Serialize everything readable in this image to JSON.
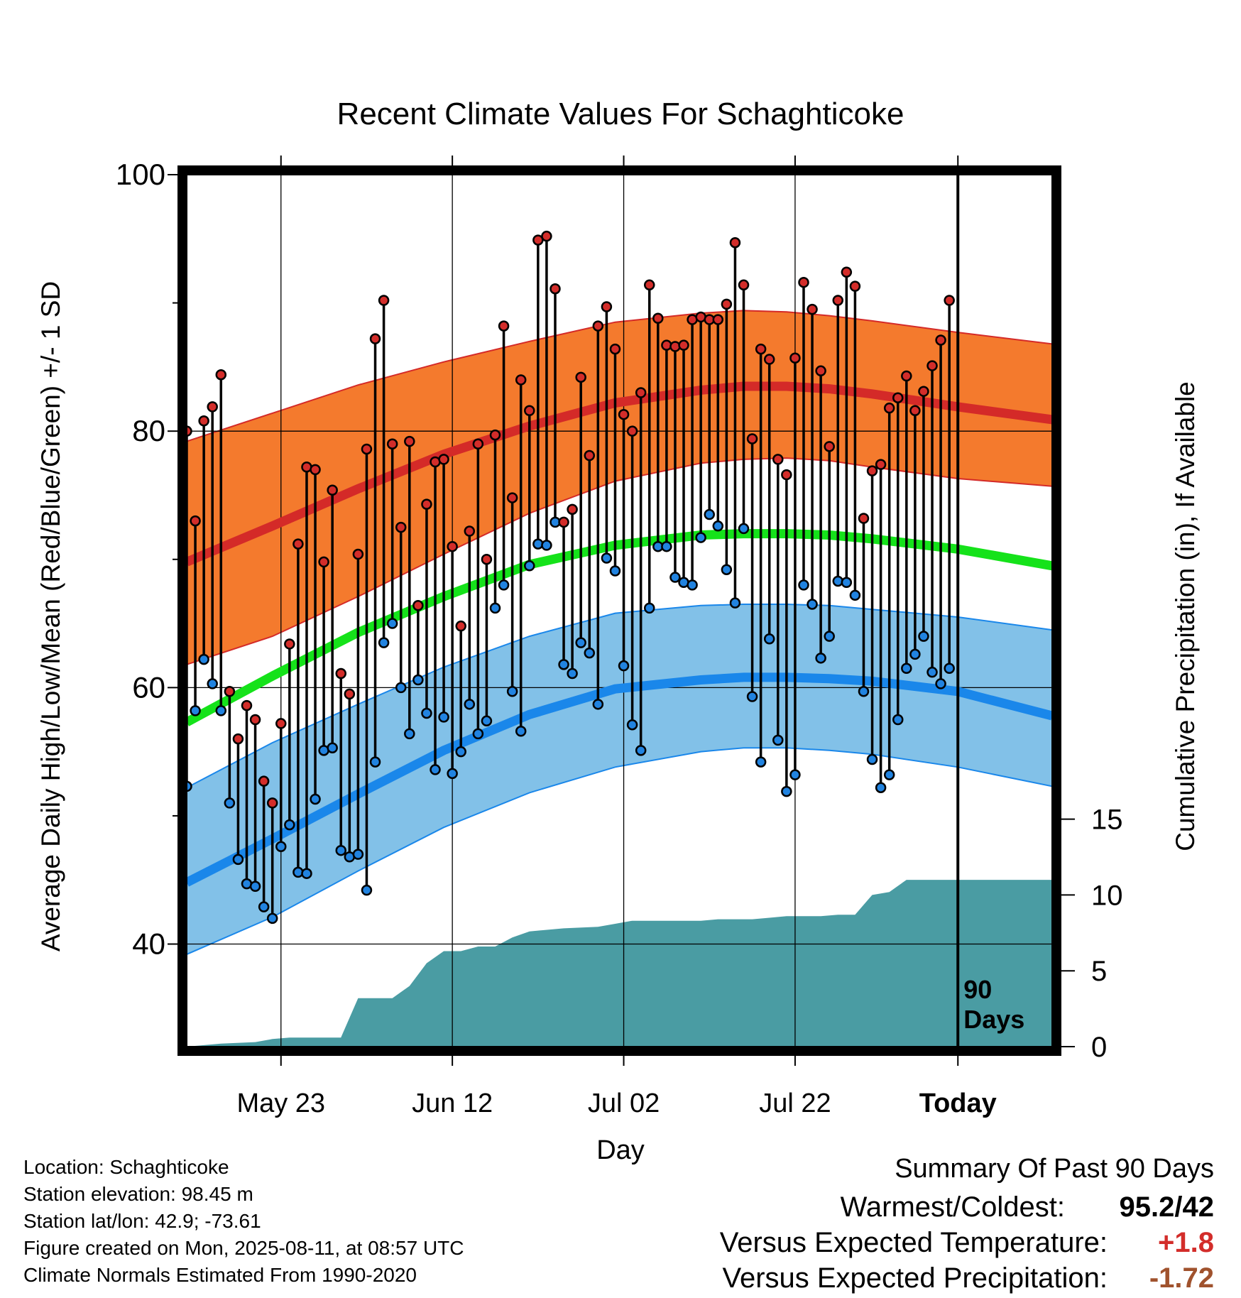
{
  "chart_data": {
    "type": "line",
    "title": "Recent Climate Values For Schaghticoke",
    "xlabel": "Day",
    "ylabel": "Average Daily High/Low/Mean (Red/Blue/Green) +/- 1 SD",
    "y2label": "Cumulative Precipitation (in), If Available",
    "ylim": [
      32,
      100
    ],
    "y2lim": [
      0,
      57.5
    ],
    "yticks": [
      "100",
      "80",
      "60",
      "40"
    ],
    "y2ticks": [
      "15",
      "10",
      "5",
      "0"
    ],
    "xlim": [
      0,
      101
    ],
    "xtick_positions": [
      11,
      31,
      51,
      71,
      90
    ],
    "xticks": [
      "May 23",
      "Jun 12",
      "Jul 02",
      "Jul 22",
      "Today"
    ],
    "today_label": "90\nDays",
    "grid": true,
    "colors": {
      "high_band": "#f47a2d",
      "high_line": "#d42a28",
      "mean_line": "#15e21a",
      "low_band": "#82c1e8",
      "low_line": "#1a87ea",
      "precip": "#4a9ca3",
      "high_marker": "#d32d2a",
      "low_marker": "#2183e0"
    },
    "normal_high": {
      "x": [
        0,
        10,
        20,
        30,
        40,
        50,
        60,
        65,
        70,
        75,
        80,
        90,
        101
      ],
      "mean": [
        69.8,
        72.6,
        75.5,
        78.2,
        80.4,
        82.2,
        83.2,
        83.5,
        83.5,
        83.3,
        82.9,
        81.9,
        80.9
      ],
      "upper": [
        79.2,
        81.4,
        83.6,
        85.4,
        87.0,
        88.5,
        89.2,
        89.4,
        89.3,
        89.0,
        88.6,
        87.7,
        86.8
      ],
      "lower": [
        61.8,
        64.0,
        67.1,
        70.4,
        73.6,
        76.1,
        77.5,
        77.8,
        77.9,
        77.7,
        77.2,
        76.3,
        75.7
      ]
    },
    "normal_mean": {
      "x": [
        0,
        10,
        20,
        30,
        40,
        50,
        60,
        65,
        70,
        75,
        80,
        90,
        101
      ],
      "values": [
        57.3,
        60.9,
        64.3,
        67.1,
        69.6,
        71.1,
        71.9,
        72.0,
        72.0,
        71.9,
        71.6,
        70.8,
        69.5
      ]
    },
    "normal_low": {
      "x": [
        0,
        10,
        20,
        30,
        40,
        50,
        60,
        65,
        70,
        75,
        80,
        90,
        101
      ],
      "mean": [
        44.8,
        48.2,
        51.7,
        55.1,
        57.9,
        59.9,
        60.6,
        60.8,
        60.8,
        60.7,
        60.5,
        59.7,
        57.8
      ],
      "upper": [
        52.2,
        55.7,
        58.7,
        61.6,
        64.0,
        65.8,
        66.4,
        66.5,
        66.5,
        66.4,
        66.1,
        65.5,
        64.5
      ],
      "lower": [
        39.2,
        42.1,
        45.7,
        49.1,
        51.8,
        53.8,
        55.0,
        55.3,
        55.3,
        55.1,
        54.8,
        53.8,
        52.3
      ]
    },
    "precip": {
      "x": [
        0,
        4,
        8,
        10,
        12,
        14,
        16,
        18,
        20,
        22,
        24,
        26,
        28,
        30,
        32,
        34,
        36,
        38,
        40,
        44,
        48,
        50,
        52,
        56,
        60,
        62,
        64,
        66,
        68,
        70,
        72,
        74,
        76,
        78,
        80,
        82,
        84,
        86,
        88,
        90,
        101
      ],
      "y": [
        0,
        0.2,
        0.3,
        0.5,
        0.6,
        0.6,
        0.6,
        0.6,
        3.2,
        3.2,
        3.2,
        4.0,
        5.5,
        6.3,
        6.3,
        6.6,
        6.6,
        7.2,
        7.6,
        7.8,
        7.9,
        8.1,
        8.3,
        8.3,
        8.3,
        8.4,
        8.4,
        8.4,
        8.5,
        8.6,
        8.6,
        8.6,
        8.7,
        8.7,
        10.0,
        10.2,
        11.0,
        11.0,
        11.0,
        11.0,
        11.0
      ]
    },
    "days": {
      "x": [
        0,
        1,
        2,
        3,
        4,
        5,
        6,
        7,
        8,
        9,
        10,
        11,
        12,
        13,
        14,
        15,
        16,
        17,
        18,
        19,
        20,
        21,
        22,
        23,
        24,
        25,
        26,
        27,
        28,
        29,
        30,
        31,
        32,
        33,
        34,
        35,
        36,
        37,
        38,
        39,
        40,
        41,
        42,
        43,
        44,
        45,
        46,
        47,
        48,
        49,
        50,
        51,
        52,
        53,
        54,
        55,
        56,
        57,
        58,
        59,
        60,
        61,
        62,
        63,
        64,
        65,
        66,
        67,
        68,
        69,
        70,
        71,
        72,
        73,
        74,
        75,
        76,
        77,
        78,
        79,
        80,
        81,
        82,
        83,
        84,
        85,
        86,
        87,
        88,
        89
      ],
      "high": [
        80.0,
        73.0,
        80.8,
        81.9,
        84.4,
        59.7,
        56.0,
        58.6,
        57.5,
        52.7,
        51.0,
        57.2,
        63.4,
        71.2,
        77.2,
        77.0,
        69.8,
        75.4,
        61.1,
        59.5,
        70.4,
        78.6,
        87.2,
        90.2,
        79.0,
        72.5,
        79.2,
        66.4,
        74.3,
        77.6,
        77.8,
        71.0,
        64.8,
        72.2,
        79.0,
        70.0,
        79.7,
        88.2,
        74.8,
        84.0,
        81.6,
        94.9,
        95.2,
        91.1,
        72.9,
        73.9,
        84.2,
        78.1,
        88.2,
        89.7,
        86.4,
        81.3,
        80.0,
        83.0,
        91.4,
        88.8,
        86.7,
        86.6,
        86.7,
        88.7,
        88.9,
        88.7,
        88.7,
        89.9,
        94.7,
        91.4,
        79.4,
        86.4,
        85.6,
        77.8,
        76.6,
        85.7,
        91.6,
        89.5,
        84.7,
        78.8,
        90.2,
        92.4,
        91.3,
        73.2,
        76.9,
        77.4,
        81.8,
        82.6,
        84.3,
        81.6,
        83.1,
        85.1,
        87.1,
        90.2
      ],
      "low": [
        52.3,
        58.2,
        62.2,
        60.3,
        58.2,
        51.0,
        46.6,
        44.7,
        44.5,
        42.9,
        42.0,
        47.6,
        49.3,
        45.6,
        45.5,
        51.3,
        55.1,
        55.3,
        47.3,
        46.8,
        47.0,
        44.2,
        54.2,
        63.5,
        65.0,
        60.0,
        56.4,
        60.6,
        58.0,
        53.6,
        57.7,
        53.3,
        55.0,
        58.7,
        56.4,
        57.4,
        66.2,
        68.0,
        59.7,
        56.6,
        69.5,
        71.2,
        71.1,
        72.9,
        61.8,
        61.1,
        63.5,
        62.7,
        58.7,
        70.1,
        69.1,
        61.7,
        57.1,
        55.1,
        66.2,
        71.0,
        71.0,
        68.6,
        68.2,
        68.0,
        71.7,
        73.5,
        72.6,
        69.2,
        66.6,
        72.4,
        59.3,
        54.2,
        63.8,
        55.9,
        51.9,
        53.2,
        68.0,
        66.5,
        62.3,
        64.0,
        68.3,
        68.2,
        67.2,
        59.7,
        54.4,
        52.2,
        53.2,
        57.5,
        61.5,
        62.6,
        64.0,
        61.2,
        60.3,
        61.5
      ]
    }
  },
  "footer": {
    "location": "Location: Schaghticoke",
    "elevation": "Station elevation: 98.45 m",
    "latlon": "Station lat/lon: 42.9; -73.61",
    "created": "Figure created on Mon, 2025-08-11, at 08:57 UTC",
    "normals": "Climate Normals Estimated From 1990-2020"
  },
  "summary": {
    "title": "Summary Of Past 90 Days",
    "warm_label": "Warmest/Coldest:",
    "warm_value": "95.2/42",
    "temp_label": "Versus Expected Temperature:",
    "temp_value": "+1.8",
    "temp_color": "#d32d2a",
    "precip_label": "Versus Expected Precipitation:",
    "precip_value": "-1.72",
    "precip_color": "#a0522d"
  }
}
